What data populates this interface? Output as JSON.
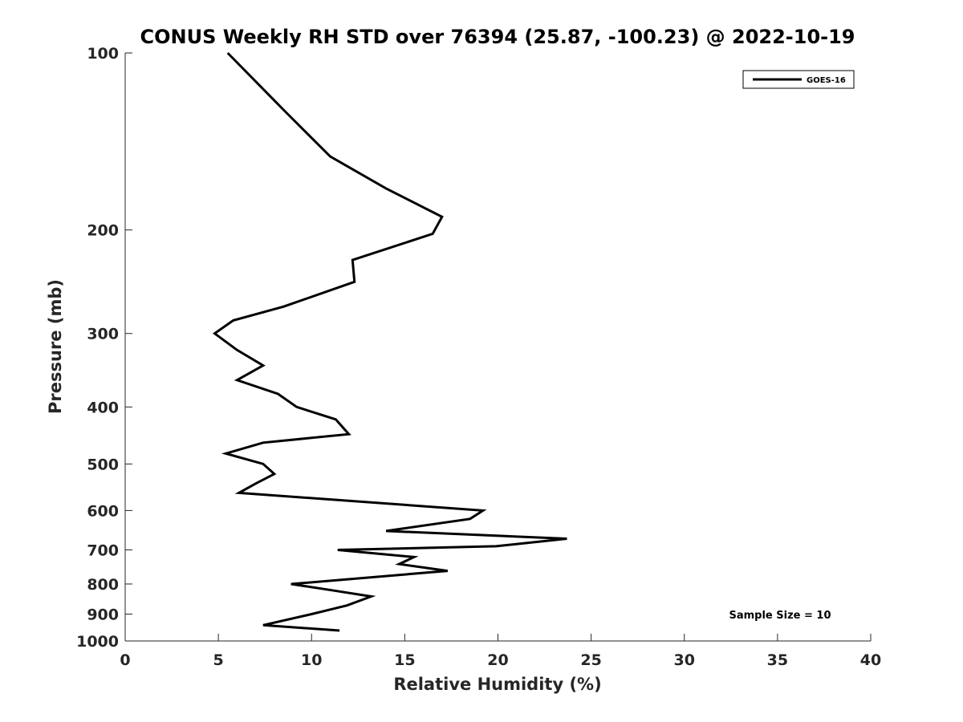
{
  "chart_data": {
    "type": "line",
    "title": "CONUS Weekly RH STD over 76394 (25.87, -100.23) @ 2022-10-19",
    "xlabel": "Relative Humidity (%)",
    "ylabel": "Pressure (mb)",
    "xlim": [
      0,
      40
    ],
    "ylim": [
      1000,
      100
    ],
    "y_scale": "log",
    "y_inverted": true,
    "x_ticks": [
      "0",
      "5",
      "10",
      "15",
      "20",
      "25",
      "30",
      "35",
      "40"
    ],
    "y_ticks": [
      "100",
      "200",
      "300",
      "400",
      "500",
      "600",
      "700",
      "800",
      "900",
      "1000"
    ],
    "grid": false,
    "legend_position": "top-right",
    "series": [
      {
        "name": "GOES-16",
        "color": "#000000",
        "x": [
          5.5,
          8.5,
          11,
          14,
          17,
          16.5,
          12.2,
          12.3,
          8.5,
          5.8,
          4.8,
          6,
          7.4,
          6,
          8.2,
          9.2,
          11.3,
          12,
          7.4,
          5.4,
          7.4,
          8,
          7,
          6.1,
          19.2,
          18.5,
          14,
          23.7,
          19.9,
          11.4,
          15.5,
          14.7,
          17.3,
          8.9,
          11.1,
          13.2,
          11.9,
          10,
          7.4,
          11.5
        ],
        "y": [
          100,
          125,
          150,
          170,
          190,
          203,
          225,
          245,
          270,
          285,
          300,
          320,
          340,
          360,
          380,
          400,
          420,
          445,
          460,
          480,
          500,
          520,
          540,
          560,
          600,
          620,
          650,
          670,
          690,
          700,
          720,
          740,
          760,
          800,
          820,
          840,
          870,
          900,
          940,
          960
        ]
      }
    ],
    "annotations": [
      "Sample Size = 10"
    ]
  }
}
